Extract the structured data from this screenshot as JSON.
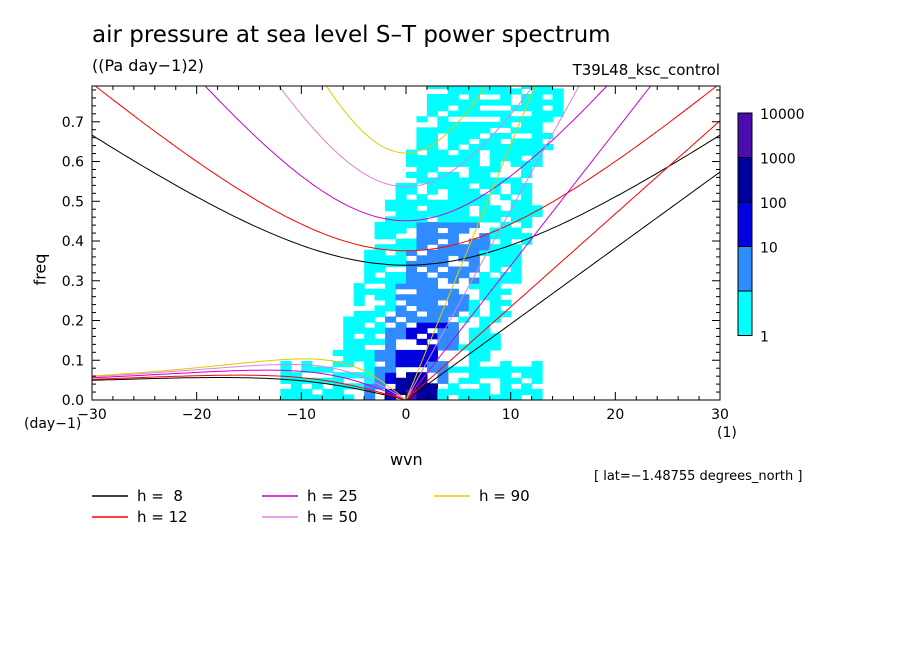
{
  "title": "air pressure at sea level S–T power spectrum",
  "units": "((Pa day−1)2)",
  "run_label": "T39L48_ksc_control",
  "lat_note": "[ lat=−1.48755 degrees_north ]",
  "chart_data": {
    "type": "heatmap",
    "title": "air pressure at sea level S–T power spectrum",
    "xlabel": "wvn",
    "ylabel": "freq",
    "x_unit": "(1)",
    "y_unit": "(day−1)",
    "xlim": [
      -30,
      30
    ],
    "ylim": [
      0,
      0.79
    ],
    "x_ticks": [
      "−30",
      "−20",
      "−10",
      "0",
      "10",
      "20",
      "30"
    ],
    "x_tick_values": [
      -30,
      -20,
      -10,
      0,
      10,
      20,
      30
    ],
    "y_ticks": [
      "0.0",
      "0.1",
      "0.2",
      "0.3",
      "0.4",
      "0.5",
      "0.6",
      "0.7"
    ],
    "y_tick_values": [
      0,
      0.1,
      0.2,
      0.3,
      0.4,
      0.5,
      0.6,
      0.7
    ],
    "colorbar": {
      "labels": [
        "10000",
        "1000",
        "100",
        "10",
        "1"
      ],
      "levels": [
        1,
        10,
        100,
        1000,
        10000
      ],
      "colors": [
        "#00ffff",
        "#2f8cff",
        "#0000e0",
        "#0000a0",
        "#4b0db0"
      ]
    },
    "regions": [
      {
        "level": 1,
        "x": [
          -12,
          13
        ],
        "y": [
          0.0,
          0.79
        ],
        "note": "broad low-power band"
      },
      {
        "level": 10,
        "x": [
          -3,
          9
        ],
        "y": [
          0.0,
          0.45
        ]
      },
      {
        "level": 100,
        "x": [
          -1,
          6
        ],
        "y": [
          0.0,
          0.2
        ]
      },
      {
        "level": 1000,
        "x": [
          -1,
          3
        ],
        "y": [
          0.0,
          0.08
        ]
      }
    ],
    "dispersion_curves": [
      {
        "name": "h =  8",
        "h": 8,
        "color": "#000000"
      },
      {
        "name": "h = 12",
        "h": 12,
        "color": "#ff0000"
      },
      {
        "name": "h = 25",
        "h": 25,
        "color": "#cc00cc"
      },
      {
        "name": "h = 50",
        "h": 50,
        "color": "#e080e0"
      },
      {
        "name": "h = 90",
        "h": 90,
        "color": "#e8c800"
      }
    ],
    "legend": [
      {
        "label": "h =  8",
        "color": "#000000"
      },
      {
        "label": "h = 25",
        "color": "#cc00cc"
      },
      {
        "label": "h = 90",
        "color": "#e8c800"
      },
      {
        "label": "h = 12",
        "color": "#ff0000"
      },
      {
        "label": "h = 50",
        "color": "#e080e0"
      }
    ],
    "legend_position": "bottom-left"
  }
}
